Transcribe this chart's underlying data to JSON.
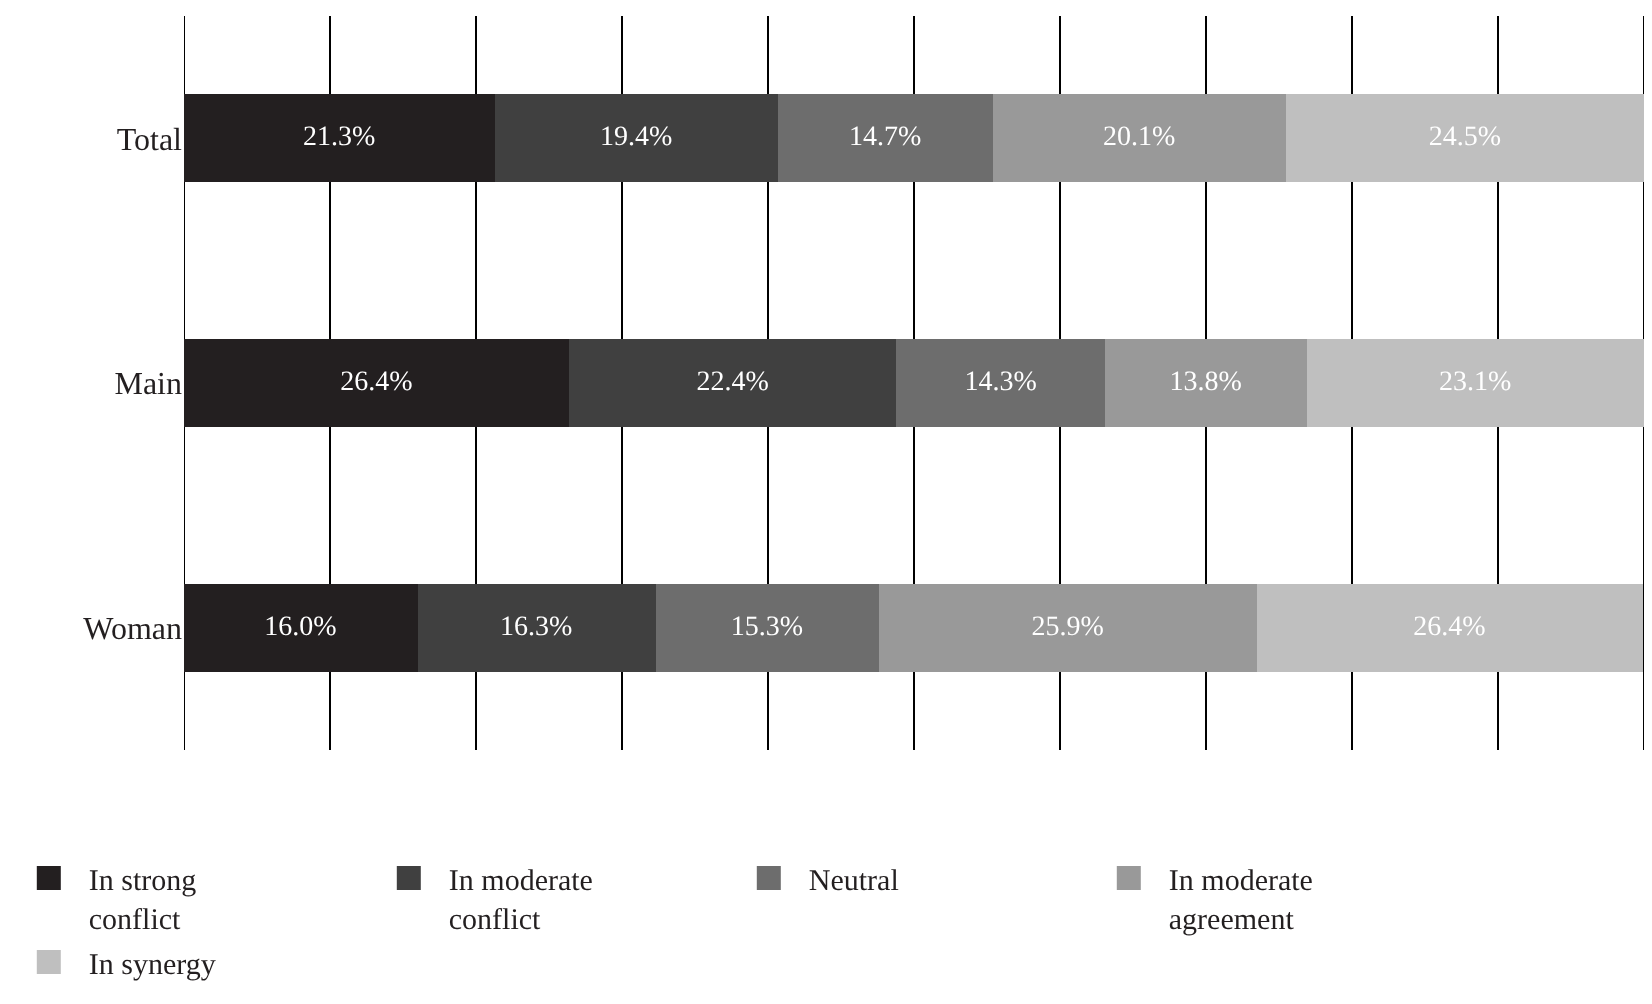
{
  "chart_data": {
    "type": "bar",
    "orientation": "horizontal",
    "stacked": true,
    "categories": [
      "Total",
      "Main",
      "Woman"
    ],
    "series": [
      {
        "name": "In strong conflict",
        "color": "#231f20",
        "values": [
          21.3,
          26.4,
          16.0
        ],
        "value_labels": [
          "21.3%",
          "26.4%",
          "16.0%"
        ]
      },
      {
        "name": "In moderate conflict",
        "color": "#404040",
        "values": [
          19.4,
          22.4,
          16.3
        ],
        "value_labels": [
          "19.4%",
          "22.4%",
          "16.3%"
        ]
      },
      {
        "name": "Neutral",
        "color": "#6d6d6d",
        "values": [
          14.7,
          14.3,
          15.3
        ],
        "value_labels": [
          "14.7%",
          "14.3%",
          "15.3%"
        ]
      },
      {
        "name": "In moderate agreement",
        "color": "#999999",
        "values": [
          20.1,
          13.8,
          25.9
        ],
        "value_labels": [
          "20.1%",
          "13.8%",
          "25.9%"
        ]
      },
      {
        "name": "In synergy",
        "color": "#bfbfbf",
        "values": [
          24.5,
          23.1,
          26.4
        ],
        "value_labels": [
          "24.5%",
          "23.1%",
          "26.4%"
        ]
      }
    ],
    "xlim": [
      0,
      100
    ],
    "xticks": [
      {
        "value": 0,
        "label": null
      },
      {
        "value": 10,
        "label": null
      },
      {
        "value": 20,
        "label": null
      },
      {
        "value": 30,
        "label": null
      },
      {
        "value": 40,
        "label": null
      },
      {
        "value": 50,
        "label": null
      },
      {
        "value": 60,
        "label": null
      },
      {
        "value": 70,
        "label": null
      },
      {
        "value": 80,
        "label": null
      },
      {
        "value": 90,
        "label": null
      },
      {
        "value": 100,
        "label": null
      }
    ],
    "grid": "x",
    "legend": "bottom",
    "tick_labels": "y"
  }
}
